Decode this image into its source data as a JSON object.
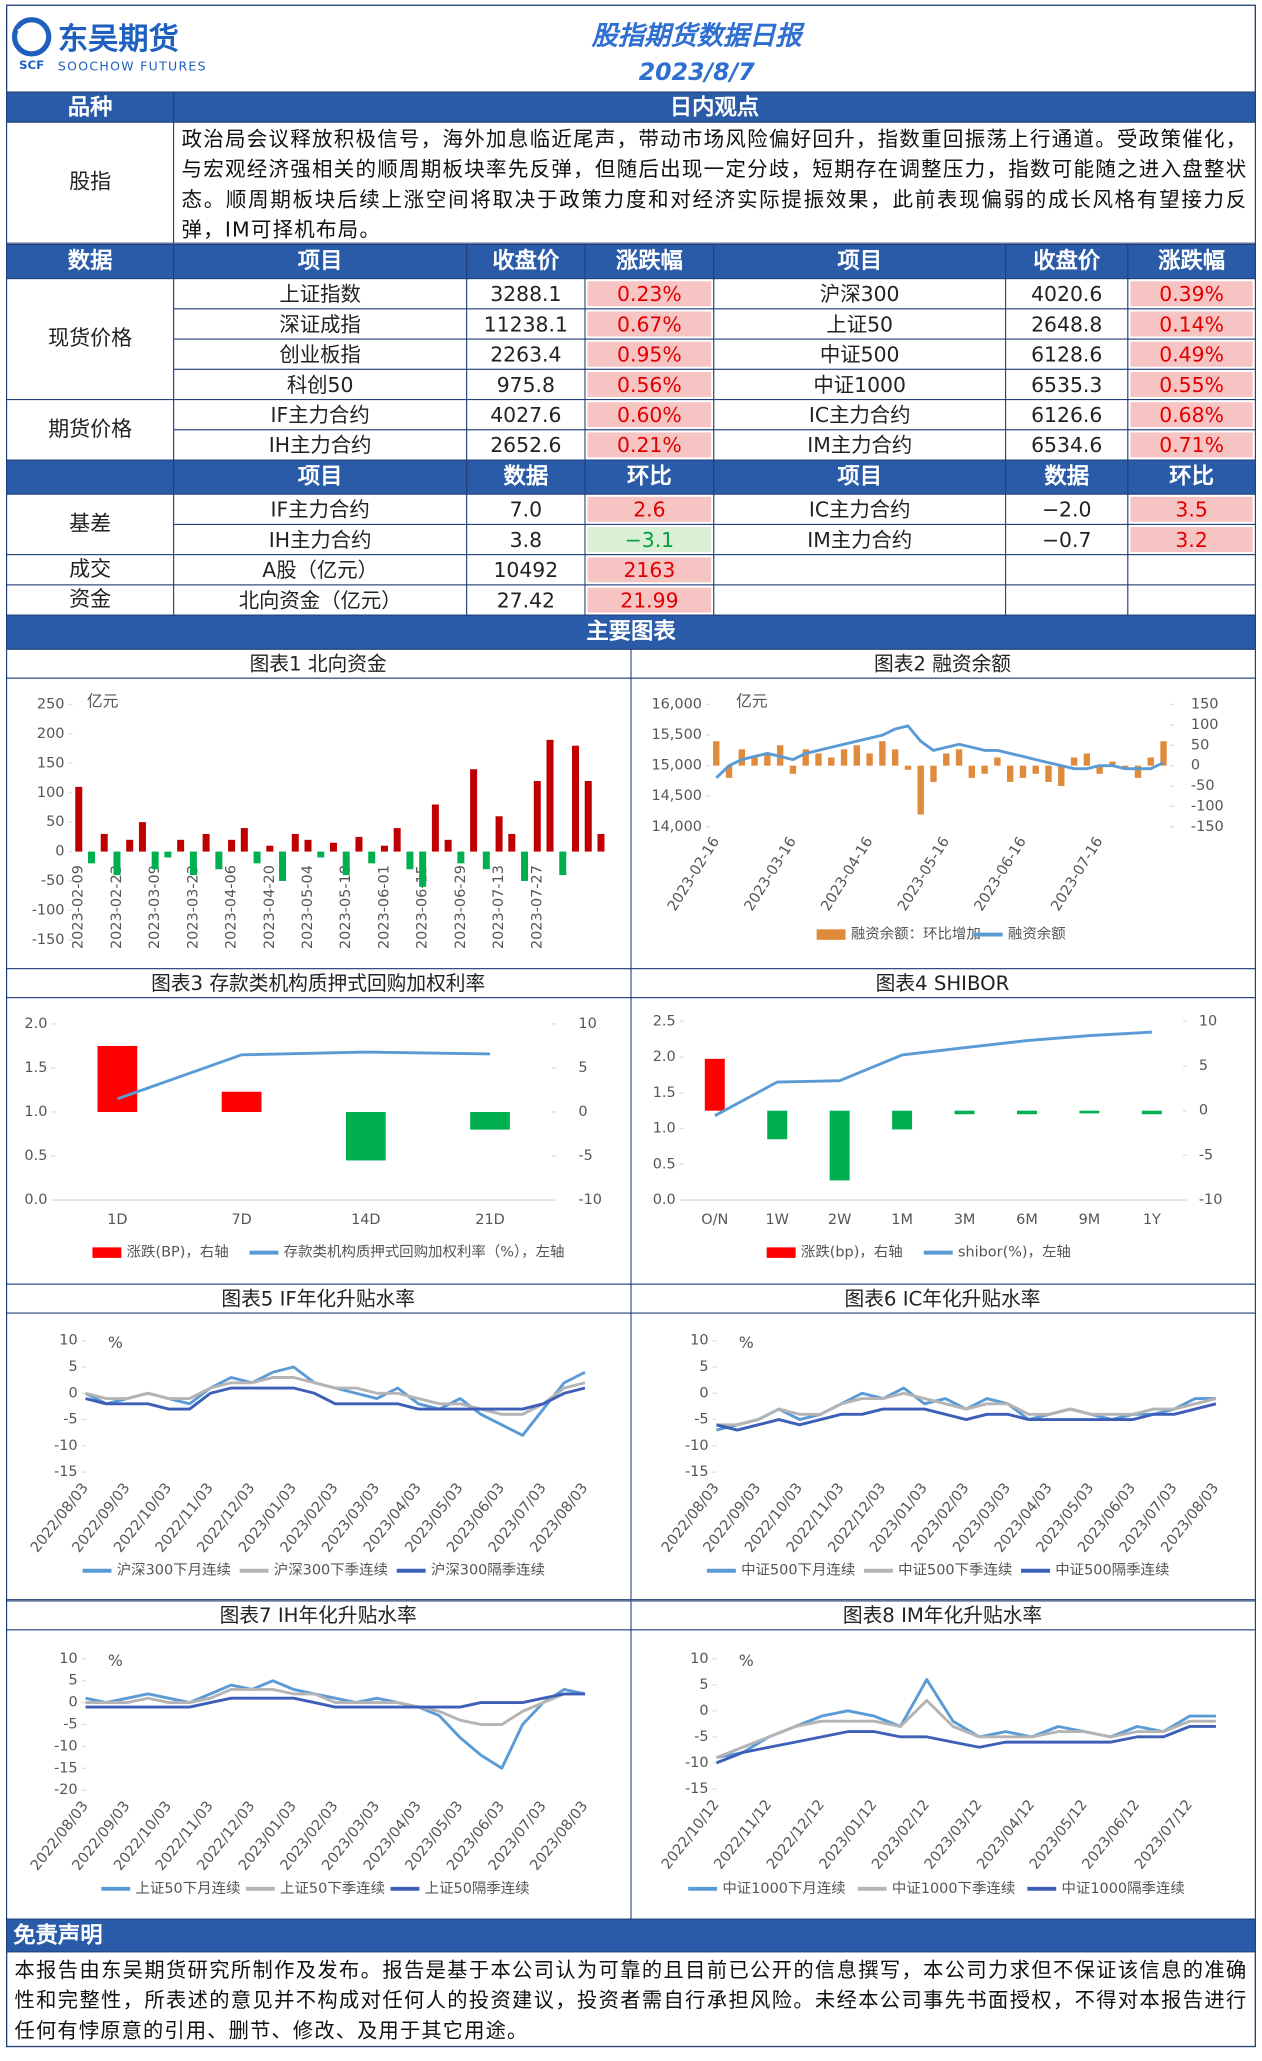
{
  "header": {
    "logo": {
      "name": "东吴期货",
      "english": "SOOCHOW FUTURES",
      "mark": "SCF"
    },
    "title": "股指期货数据日报",
    "date": "2023/8/7"
  },
  "view": {
    "headers": [
      "品种",
      "日内观点"
    ],
    "rows": [
      [
        "股指",
        "政治局会议释放积极信号，海外加息临近尾声，带动市场风险偏好回升，指数重回振荡上行通道。受政策催化，与宏观经济强相关的顺周期板块率先反弹，但随后出现一定分歧，短期存在调整压力，指数可能随之进入盘整状态。顺周期板块后续上涨空间将取决于政策力度和对经济实际提振效果，此前表现偏弱的成长风格有望接力反弹，IM可择机布局。"
      ]
    ]
  },
  "prices": {
    "headers": [
      "数据",
      "项目",
      "收盘价",
      "涨跌幅",
      "项目",
      "收盘价",
      "涨跌幅"
    ],
    "groups": [
      {
        "label": "现货价格",
        "rows": [
          [
            "上证指数",
            "3288.1",
            "0.23%",
            "沪深300",
            "4020.6",
            "0.39%"
          ],
          [
            "深证成指",
            "11238.1",
            "0.67%",
            "上证50",
            "2648.8",
            "0.14%"
          ],
          [
            "创业板指",
            "2263.4",
            "0.95%",
            "中证500",
            "6128.6",
            "0.49%"
          ],
          [
            "科创50",
            "975.8",
            "0.56%",
            "中证1000",
            "6535.3",
            "0.55%"
          ]
        ]
      },
      {
        "label": "期货价格",
        "rows": [
          [
            "IF主力合约",
            "4027.6",
            "0.60%",
            "IC主力合约",
            "6126.6",
            "0.68%"
          ],
          [
            "IH主力合约",
            "2652.6",
            "0.21%",
            "IM主力合约",
            "6534.6",
            "0.71%"
          ]
        ]
      }
    ]
  },
  "basis": {
    "headers": [
      "项目",
      "数据",
      "环比",
      "项目",
      "数据",
      "环比"
    ],
    "groups": [
      {
        "label": "基差",
        "rows": [
          [
            "IF主力合约",
            "7.0",
            "2.6",
            "IC主力合约",
            "−2.0",
            "3.5"
          ],
          [
            "IH主力合约",
            "3.8",
            "−3.1",
            "IM主力合约",
            "−0.7",
            "3.2"
          ]
        ]
      },
      {
        "label": "成交",
        "rows": [
          [
            "A股（亿元）",
            "10492",
            "2163"
          ]
        ]
      },
      {
        "label": "资金",
        "rows": [
          [
            "北向资金（亿元）",
            "27.42",
            "21.99"
          ]
        ]
      }
    ]
  },
  "charts_title": "主要图表",
  "chart_data": [
    {
      "type": "bar",
      "title": "图表1  北向资金",
      "unit": "亿元",
      "ylim": [
        -150,
        250
      ],
      "yticks": [
        -150,
        -100,
        -50,
        0,
        50,
        100,
        150,
        200,
        250
      ],
      "categories": [
        "2023-02-09",
        null,
        null,
        "2023-02-23",
        null,
        null,
        "2023-03-09",
        null,
        null,
        "2023-03-23",
        null,
        null,
        "2023-04-06",
        null,
        null,
        "2023-04-20",
        null,
        null,
        "2023-05-04",
        null,
        null,
        "2023-05-18",
        null,
        null,
        "2023-06-01",
        null,
        null,
        "2023-06-15",
        null,
        null,
        "2023-06-29",
        null,
        null,
        "2023-07-13",
        null,
        null,
        "2023-07-27",
        null,
        null,
        null,
        null,
        null
      ],
      "color": "#c00000",
      "negative_color": "#00b050",
      "values": [
        110,
        -20,
        30,
        -40,
        20,
        50,
        -30,
        -10,
        20,
        -40,
        30,
        -30,
        20,
        40,
        -20,
        10,
        -50,
        30,
        20,
        -10,
        15,
        -40,
        25,
        -20,
        10,
        40,
        -30,
        -60,
        80,
        20,
        -20,
        140,
        -30,
        60,
        30,
        -50,
        120,
        190,
        -40,
        180,
        120,
        30
      ]
    },
    {
      "type": "combo",
      "title": "图表2  融资余额",
      "unit": "亿元",
      "ylim": [
        14000,
        16000
      ],
      "yticks": [
        {
          "value": 14000,
          "label": "14,000"
        },
        {
          "value": 14500,
          "label": "14,500"
        },
        {
          "value": 15000,
          "label": "15,000"
        },
        {
          "value": 15500,
          "label": "15,500"
        },
        {
          "value": 16000,
          "label": "16,000"
        }
      ],
      "y2lim": [
        -150,
        150
      ],
      "y2ticks": [
        -150,
        -100,
        -50,
        0,
        50,
        100,
        150
      ],
      "categories": [
        "2023-02-16",
        null,
        null,
        null,
        null,
        null,
        "2023-03-16",
        null,
        null,
        null,
        null,
        null,
        "2023-04-16",
        null,
        null,
        null,
        null,
        null,
        "2023-05-16",
        null,
        null,
        null,
        null,
        null,
        "2023-06-16",
        null,
        null,
        null,
        null,
        null,
        "2023-07-16",
        null,
        null,
        null,
        null,
        null
      ],
      "series": [
        {
          "name": "融资余额：环比增加",
          "type": "bar",
          "axis": "y2",
          "color": "#e08a3c",
          "values": [
            60,
            -30,
            40,
            20,
            30,
            50,
            -20,
            40,
            30,
            20,
            40,
            50,
            30,
            60,
            40,
            -10,
            -120,
            -40,
            30,
            40,
            -30,
            -20,
            20,
            -40,
            -30,
            -20,
            -40,
            -50,
            20,
            30,
            -20,
            10,
            -10,
            -30,
            20,
            60
          ]
        },
        {
          "name": "融资余额",
          "type": "line",
          "color": "#5b9bd5",
          "values": [
            14800,
            15000,
            15100,
            15150,
            15200,
            15150,
            15100,
            15200,
            15250,
            15300,
            15350,
            15400,
            15450,
            15500,
            15600,
            15650,
            15400,
            15250,
            15300,
            15350,
            15300,
            15250,
            15250,
            15200,
            15150,
            15100,
            15050,
            15000,
            14950,
            14950,
            15000,
            15000,
            14950,
            14950,
            14950,
            15050
          ]
        }
      ]
    },
    {
      "type": "combo",
      "title": "图表3  存款类机构质押式回购加权利率",
      "ylim": [
        0,
        2
      ],
      "yticks": [
        {
          "value": 0,
          "label": "0.0"
        },
        0.5,
        {
          "value": 1,
          "label": "1.0"
        },
        1.5,
        {
          "value": 2,
          "label": "2.0"
        }
      ],
      "y2lim": [
        -10,
        10
      ],
      "y2ticks": [
        -10,
        -5,
        0,
        5,
        10
      ],
      "categories": [
        "1D",
        "7D",
        "14D",
        "21D"
      ],
      "series": [
        {
          "name": "涨跌(BP)，右轴",
          "type": "bar",
          "axis": "y2",
          "color": "#ff0000",
          "negative_color": "#00b050",
          "values": [
            7.5,
            2.3,
            -5.5,
            -2
          ]
        },
        {
          "name": "存款类机构质押式回购加权利率（%），左轴",
          "type": "line",
          "color": "#5b9bd5",
          "values": [
            1.15,
            1.65,
            1.68,
            1.66
          ]
        }
      ]
    },
    {
      "type": "combo",
      "title": "图表4  SHIBOR",
      "ylim": [
        0,
        2.5
      ],
      "yticks": [
        {
          "value": 0,
          "label": "0.0"
        },
        0.5,
        {
          "value": 1,
          "label": "1.0"
        },
        1.5,
        {
          "value": 2,
          "label": "2.0"
        },
        2.5
      ],
      "y2lim": [
        -10,
        10
      ],
      "y2ticks": [
        -10,
        -5,
        0,
        5,
        10
      ],
      "categories": [
        "O/N",
        "1W",
        "2W",
        "1M",
        "3M",
        "6M",
        "9M",
        "1Y"
      ],
      "series": [
        {
          "name": "涨跌(bp)，右轴",
          "type": "bar",
          "axis": "y2",
          "color": "#ff0000",
          "negative_color": "#00b050",
          "values": [
            5.8,
            -3.2,
            -7.8,
            -2.1,
            -0.4,
            -0.4,
            -0.3,
            -0.4
          ]
        },
        {
          "name": "shibor(%)，左轴",
          "type": "line",
          "color": "#5b9bd5",
          "values": [
            1.18,
            1.65,
            1.67,
            2.03,
            2.13,
            2.23,
            2.3,
            2.35
          ]
        }
      ]
    },
    {
      "type": "line",
      "title": "图表5  IF年化升贴水率",
      "unit": "%",
      "ylim": [
        -15,
        10
      ],
      "yticks": [
        -15,
        -10,
        -5,
        0,
        5,
        10
      ],
      "categories": [
        "2022/08/03",
        null,
        "2022/09/03",
        null,
        "2022/10/03",
        null,
        "2022/11/03",
        null,
        "2022/12/03",
        null,
        "2023/01/03",
        null,
        "2023/02/03",
        null,
        "2023/03/03",
        null,
        "2023/04/03",
        null,
        "2023/05/03",
        null,
        "2023/06/03",
        null,
        "2023/07/03",
        null,
        "2023/08/03"
      ],
      "series": [
        {
          "name": "沪深300下月连续",
          "color": "#5b9bd5",
          "values": [
            0,
            -2,
            -1,
            0,
            -1,
            -2,
            1,
            3,
            2,
            4,
            5,
            2,
            1,
            0,
            -1,
            1,
            -2,
            -3,
            -1,
            -4,
            -6,
            -8,
            -3,
            2,
            4
          ]
        },
        {
          "name": "沪深300下季连续",
          "color": "#b4b4b4",
          "values": [
            0,
            -1,
            -1,
            0,
            -1,
            -1,
            1,
            2,
            2,
            3,
            3,
            2,
            1,
            1,
            0,
            0,
            -1,
            -2,
            -2,
            -3,
            -4,
            -4,
            -2,
            1,
            2
          ]
        },
        {
          "name": "沪深300隔季连续",
          "color": "#3d5fb8",
          "values": [
            -1,
            -2,
            -2,
            -2,
            -3,
            -3,
            0,
            1,
            1,
            1,
            1,
            0,
            -2,
            -2,
            -2,
            -2,
            -3,
            -3,
            -3,
            -3,
            -3,
            -3,
            -2,
            0,
            1
          ]
        }
      ]
    },
    {
      "type": "line",
      "title": "图表6  IC年化升贴水率",
      "unit": "%",
      "ylim": [
        -15,
        10
      ],
      "yticks": [
        -15,
        -10,
        -5,
        0,
        5,
        10
      ],
      "categories": [
        "2022/08/03",
        null,
        "2022/09/03",
        null,
        "2022/10/03",
        null,
        "2022/11/03",
        null,
        "2022/12/03",
        null,
        "2023/01/03",
        null,
        "2023/02/03",
        null,
        "2023/03/03",
        null,
        "2023/04/03",
        null,
        "2023/05/03",
        null,
        "2023/06/03",
        null,
        "2023/07/03",
        null,
        "2023/08/03"
      ],
      "series": [
        {
          "name": "中证500下月连续",
          "color": "#5b9bd5",
          "values": [
            -7,
            -6,
            -5,
            -3,
            -5,
            -4,
            -2,
            0,
            -1,
            1,
            -2,
            -1,
            -3,
            -1,
            -2,
            -5,
            -4,
            -3,
            -4,
            -5,
            -4,
            -4,
            -3,
            -1,
            -1
          ]
        },
        {
          "name": "中证500下季连续",
          "color": "#b4b4b4",
          "values": [
            -6,
            -6,
            -5,
            -3,
            -4,
            -4,
            -2,
            -1,
            -1,
            0,
            -1,
            -2,
            -3,
            -2,
            -2,
            -4,
            -4,
            -3,
            -4,
            -4,
            -4,
            -3,
            -3,
            -2,
            -1
          ]
        },
        {
          "name": "中证500隔季连续",
          "color": "#3d5fb8",
          "values": [
            -6,
            -7,
            -6,
            -5,
            -6,
            -5,
            -4,
            -4,
            -3,
            -3,
            -3,
            -4,
            -5,
            -4,
            -4,
            -5,
            -5,
            -5,
            -5,
            -5,
            -5,
            -4,
            -4,
            -3,
            -2
          ]
        }
      ]
    },
    {
      "type": "line",
      "title": "图表7  IH年化升贴水率",
      "unit": "%",
      "ylim": [
        -20,
        10
      ],
      "yticks": [
        -20,
        -15,
        -10,
        -5,
        0,
        5,
        10
      ],
      "categories": [
        "2022/08/03",
        null,
        "2022/09/03",
        null,
        "2022/10/03",
        null,
        "2022/11/03",
        null,
        "2022/12/03",
        null,
        "2023/01/03",
        null,
        "2023/02/03",
        null,
        "2023/03/03",
        null,
        "2023/04/03",
        null,
        "2023/05/03",
        null,
        "2023/06/03",
        null,
        "2023/07/03",
        null,
        "2023/08/03"
      ],
      "series": [
        {
          "name": "上证50下月连续",
          "color": "#5b9bd5",
          "values": [
            1,
            0,
            1,
            2,
            1,
            0,
            2,
            4,
            3,
            5,
            3,
            2,
            1,
            0,
            1,
            0,
            -1,
            -3,
            -8,
            -12,
            -15,
            -5,
            0,
            3,
            2
          ]
        },
        {
          "name": "上证50下季连续",
          "color": "#b4b4b4",
          "values": [
            0,
            0,
            0,
            1,
            0,
            0,
            1,
            3,
            3,
            3,
            2,
            2,
            0,
            0,
            0,
            0,
            -1,
            -2,
            -4,
            -5,
            -5,
            -2,
            0,
            2,
            2
          ]
        },
        {
          "name": "上证50隔季连续",
          "color": "#3d5fb8",
          "values": [
            -1,
            -1,
            -1,
            -1,
            -1,
            -1,
            0,
            1,
            1,
            1,
            1,
            0,
            -1,
            -1,
            -1,
            -1,
            -1,
            -1,
            -1,
            0,
            0,
            0,
            1,
            2,
            2
          ]
        }
      ]
    },
    {
      "type": "line",
      "title": "图表8  IM年化升贴水率",
      "unit": "%",
      "ylim": [
        -15,
        10
      ],
      "yticks": [
        -15,
        -10,
        -5,
        0,
        5,
        10
      ],
      "categories": [
        "2022/10/12",
        null,
        "2022/11/12",
        null,
        "2022/12/12",
        null,
        "2023/01/12",
        null,
        "2023/02/12",
        null,
        "2023/03/12",
        null,
        "2023/04/12",
        null,
        "2023/05/12",
        null,
        "2023/06/12",
        null,
        "2023/07/12",
        null
      ],
      "series": [
        {
          "name": "中证1000下月连续",
          "color": "#5b9bd5",
          "values": [
            -9,
            -8,
            -5,
            -3,
            -1,
            0,
            -1,
            -3,
            6,
            -2,
            -5,
            -4,
            -5,
            -3,
            -4,
            -5,
            -3,
            -4,
            -1,
            -1
          ]
        },
        {
          "name": "中证1000下季连续",
          "color": "#b4b4b4",
          "values": [
            -9,
            -7,
            -5,
            -3,
            -2,
            -2,
            -2,
            -3,
            2,
            -3,
            -5,
            -5,
            -5,
            -4,
            -4,
            -5,
            -4,
            -4,
            -2,
            -2
          ]
        },
        {
          "name": "中证1000隔季连续",
          "color": "#3d5fb8",
          "values": [
            -10,
            -8,
            -7,
            -6,
            -5,
            -4,
            -4,
            -5,
            -5,
            -6,
            -7,
            -6,
            -6,
            -6,
            -6,
            -6,
            -5,
            -5,
            -3,
            -3
          ]
        }
      ]
    }
  ],
  "disclaimer": {
    "title": "免责声明",
    "text": "本报告由东吴期货研究所制作及发布。报告是基于本公司认为可靠的且目前已公开的信息撰写，本公司力求但不保证该信息的准确性和完整性，所表述的意见并不构成对任何人的投资建议，投资者需自行承担风险。未经本公司事先书面授权，不得对本报告进行任何有悖原意的引用、删节、修改、及用于其它用途。"
  }
}
